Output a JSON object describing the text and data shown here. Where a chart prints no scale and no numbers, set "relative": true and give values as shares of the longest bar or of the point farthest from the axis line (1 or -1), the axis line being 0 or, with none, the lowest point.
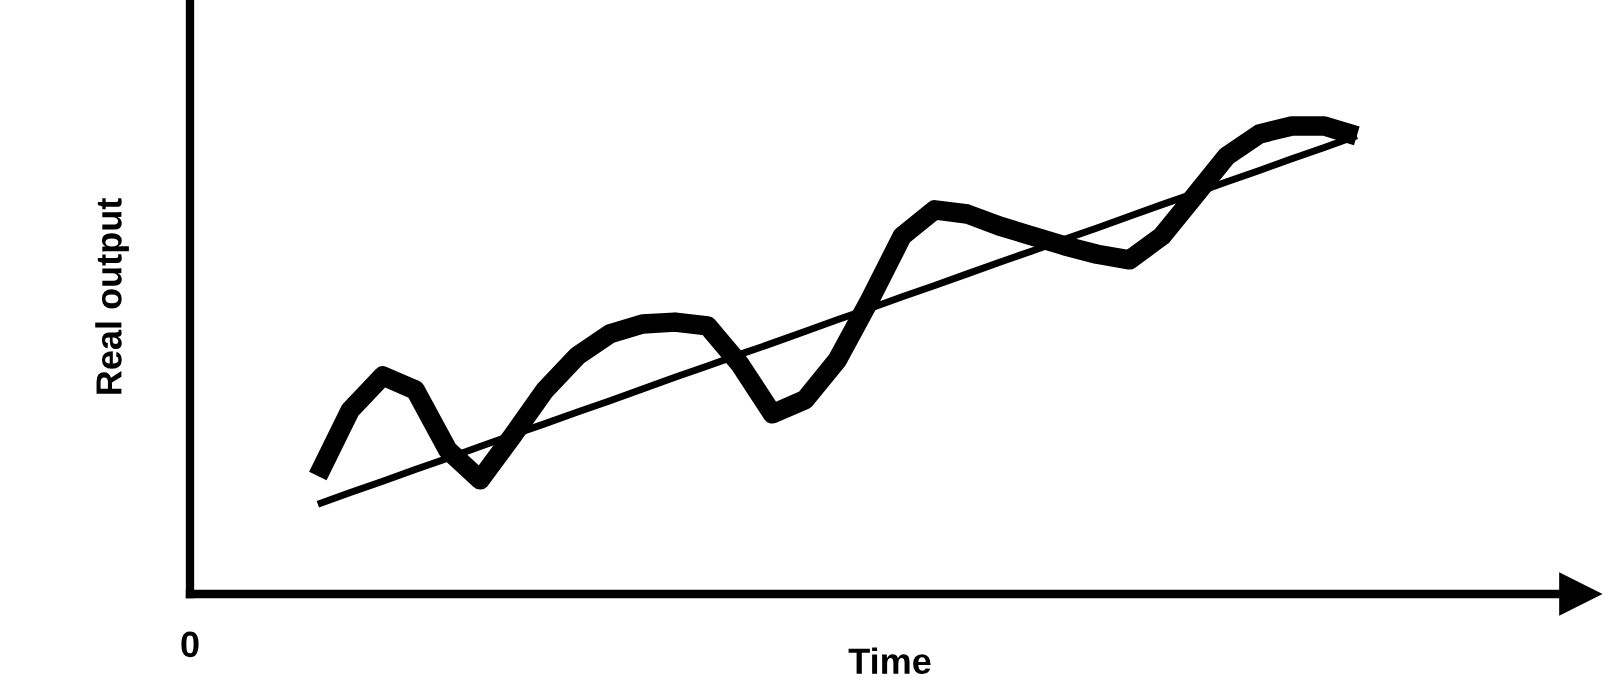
{
  "chart_data": {
    "type": "line",
    "relative": true,
    "xlabel": "Time",
    "ylabel": "Real output",
    "annotations": [
      "0"
    ],
    "categories": [
      null,
      null,
      null,
      null,
      null,
      null,
      null,
      null,
      null,
      null,
      null,
      null,
      null,
      null,
      null,
      null,
      null,
      null,
      null,
      null,
      null,
      null,
      null,
      null,
      null,
      null,
      null,
      null,
      null,
      null,
      null,
      null,
      null
    ],
    "series": [
      {
        "color": "#000000",
        "values": [
          0.252,
          0.393,
          0.466,
          0.436,
          0.308,
          0.244,
          0.338,
          0.436,
          0.509,
          0.556,
          0.577,
          0.581,
          0.573,
          0.491,
          0.385,
          0.415,
          0.5,
          0.628,
          0.765,
          0.821,
          0.812,
          0.786,
          0.765,
          0.744,
          0.726,
          0.714,
          0.765,
          0.85,
          0.936,
          0.983,
          1.0,
          1.0,
          0.979
        ]
      },
      {
        "color": "#000000",
        "values": [
          0.192,
          0.217,
          0.241,
          0.266,
          0.29,
          0.315,
          0.34,
          0.364,
          0.389,
          0.413,
          0.438,
          0.463,
          0.487,
          0.512,
          0.536,
          0.561,
          0.586,
          0.61,
          0.635,
          0.659,
          0.684,
          0.709,
          0.733,
          0.758,
          0.782,
          0.807,
          0.832,
          0.856,
          0.881,
          0.905,
          0.93,
          0.954,
          0.979
        ]
      }
    ],
    "marker": "none",
    "line_style": "solid"
  }
}
